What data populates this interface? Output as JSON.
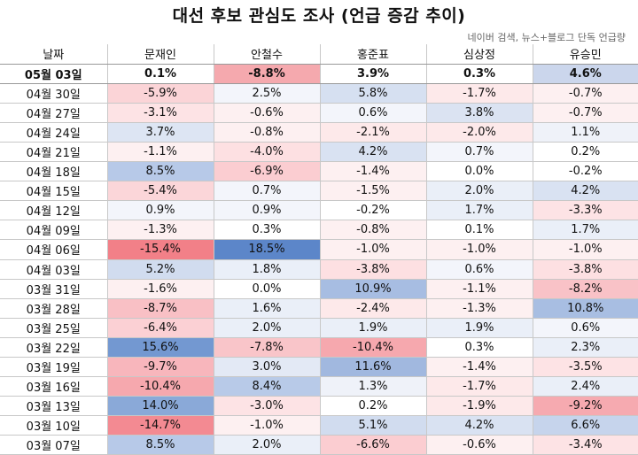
{
  "title": "대선 후보 관심도 조사 (언급 증감 추이)",
  "subtitle": "네이버 검색, 뉴스+블로그 단독 언급량",
  "columns": [
    "날짜",
    "문재인",
    "안철수",
    "홍준표",
    "심상정",
    "유승민"
  ],
  "rows": [
    {
      "date": "05월 03일",
      "values": [
        "0.1%",
        "-8.8%",
        "3.9%",
        "0.3%",
        "4.6%"
      ],
      "colors": [
        "#ffffff",
        "#f5a9ae",
        "#ffffff",
        "#ffffff",
        "#cbd6ec"
      ]
    },
    {
      "date": "04월 30일",
      "values": [
        "-5.9%",
        "2.5%",
        "5.8%",
        "-1.7%",
        "-0.7%"
      ],
      "colors": [
        "#fbd4d7",
        "#f3f5fb",
        "#d6e0f1",
        "#fde9ea",
        "#fdf0f1"
      ]
    },
    {
      "date": "04월 27일",
      "values": [
        "-3.1%",
        "-0.6%",
        "0.6%",
        "3.8%",
        "-0.7%"
      ],
      "colors": [
        "#fde3e5",
        "#fdf0f1",
        "#f3f5fb",
        "#dbe3f2",
        "#fdf0f1"
      ]
    },
    {
      "date": "04월 24일",
      "values": [
        "3.7%",
        "-0.8%",
        "-2.1%",
        "-2.0%",
        "1.1%"
      ],
      "colors": [
        "#dde5f3",
        "#fdf0f1",
        "#fde9ea",
        "#fde9ea",
        "#eff2f9"
      ]
    },
    {
      "date": "04월 21일",
      "values": [
        "-1.1%",
        "-4.0%",
        "4.2%",
        "0.7%",
        "0.2%"
      ],
      "colors": [
        "#fdf0f1",
        "#fde0e2",
        "#d9e2f2",
        "#f3f5fb",
        "#ffffff"
      ]
    },
    {
      "date": "04월 18일",
      "values": [
        "8.5%",
        "-6.9%",
        "-1.4%",
        "0.0%",
        "-0.2%"
      ],
      "colors": [
        "#b7c9e8",
        "#fbcdd1",
        "#fdf0f1",
        "#ffffff",
        "#ffffff"
      ]
    },
    {
      "date": "04월 15일",
      "values": [
        "-5.4%",
        "0.7%",
        "-1.5%",
        "2.0%",
        "4.2%"
      ],
      "colors": [
        "#fbd6d9",
        "#f3f5fb",
        "#fdf0f1",
        "#eaeff8",
        "#d9e2f2"
      ]
    },
    {
      "date": "04월 12일",
      "values": [
        "0.9%",
        "0.9%",
        "-0.2%",
        "1.7%",
        "-3.3%"
      ],
      "colors": [
        "#f3f5fb",
        "#f3f5fb",
        "#ffffff",
        "#eaeff8",
        "#fde3e5"
      ]
    },
    {
      "date": "04월 09일",
      "values": [
        "-1.3%",
        "0.3%",
        "-0.8%",
        "0.1%",
        "1.7%"
      ],
      "colors": [
        "#fdf0f1",
        "#ffffff",
        "#fdf0f1",
        "#ffffff",
        "#eaeff8"
      ]
    },
    {
      "date": "04월 06일",
      "values": [
        "-15.4%",
        "18.5%",
        "-1.0%",
        "-1.0%",
        "-1.0%"
      ],
      "colors": [
        "#f28088",
        "#5c86c9",
        "#fdf0f1",
        "#fdf0f1",
        "#fdf0f1"
      ]
    },
    {
      "date": "04월 03일",
      "values": [
        "5.2%",
        "1.8%",
        "-3.8%",
        "0.6%",
        "-3.8%"
      ],
      "colors": [
        "#d1dcef",
        "#eaeff8",
        "#fde0e2",
        "#f3f5fb",
        "#fde0e2"
      ]
    },
    {
      "date": "03월 31일",
      "values": [
        "-1.6%",
        "0.0%",
        "10.9%",
        "-1.1%",
        "-8.2%"
      ],
      "colors": [
        "#fdf0f1",
        "#ffffff",
        "#a7bde2",
        "#fdf0f1",
        "#f9c2c7"
      ]
    },
    {
      "date": "03월 28일",
      "values": [
        "-8.7%",
        "1.6%",
        "-2.4%",
        "-1.3%",
        "10.8%"
      ],
      "colors": [
        "#f9c0c5",
        "#eaeff8",
        "#fde9ea",
        "#fdf0f1",
        "#a8bee2"
      ]
    },
    {
      "date": "03월 25일",
      "values": [
        "-6.4%",
        "2.0%",
        "1.9%",
        "1.9%",
        "0.6%"
      ],
      "colors": [
        "#fbd0d4",
        "#eaeff8",
        "#eaeff8",
        "#eaeff8",
        "#f3f5fb"
      ]
    },
    {
      "date": "03월 22일",
      "values": [
        "15.6%",
        "-7.8%",
        "-10.4%",
        "0.3%",
        "2.3%"
      ],
      "colors": [
        "#7398d1",
        "#f9c5c9",
        "#f6a8ae",
        "#ffffff",
        "#eaeff8"
      ]
    },
    {
      "date": "03월 19일",
      "values": [
        "-9.7%",
        "3.0%",
        "11.6%",
        "-1.4%",
        "-3.5%"
      ],
      "colors": [
        "#f8b6bc",
        "#e3e9f5",
        "#a1b8df",
        "#fdf0f1",
        "#fde3e5"
      ]
    },
    {
      "date": "03월 16일",
      "values": [
        "-10.4%",
        "8.4%",
        "1.3%",
        "-1.7%",
        "2.4%"
      ],
      "colors": [
        "#f6a8ae",
        "#b8cae8",
        "#eff2f9",
        "#fde9ea",
        "#eaeff8"
      ]
    },
    {
      "date": "03월 13일",
      "values": [
        "14.0%",
        "-3.0%",
        "0.2%",
        "-1.9%",
        "-9.2%"
      ],
      "colors": [
        "#8aa9d8",
        "#fde3e5",
        "#ffffff",
        "#fde9ea",
        "#f6aab0"
      ]
    },
    {
      "date": "03월 10일",
      "values": [
        "-14.7%",
        "-1.0%",
        "5.1%",
        "4.2%",
        "6.6%"
      ],
      "colors": [
        "#f38a92",
        "#fdf0f1",
        "#d1dcef",
        "#d9e2f2",
        "#c6d4ec"
      ]
    },
    {
      "date": "03월 07일",
      "values": [
        "8.5%",
        "2.0%",
        "-6.6%",
        "-0.6%",
        "-3.4%"
      ],
      "colors": [
        "#b7c9e8",
        "#eaeff8",
        "#fbcdd1",
        "#fdf0f1",
        "#fde3e5"
      ]
    }
  ]
}
